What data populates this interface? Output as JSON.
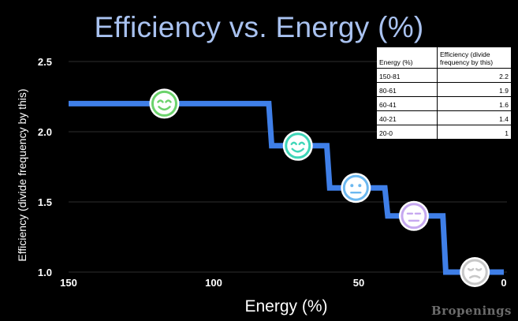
{
  "chart_data": {
    "type": "line",
    "title": "Efficiency vs. Energy (%)",
    "xlabel": "Energy (%)",
    "ylabel": "Efficiency (divide frequency by this)",
    "xlim": [
      150,
      0
    ],
    "ylim": [
      1.0,
      2.5
    ],
    "x_ticks": [
      150,
      100,
      50,
      0
    ],
    "y_ticks": [
      1.0,
      1.5,
      2.0,
      2.5
    ],
    "grid": true,
    "x": [
      150,
      81,
      80,
      61,
      60,
      41,
      40,
      21,
      20,
      0
    ],
    "y": [
      2.2,
      2.2,
      1.9,
      1.9,
      1.6,
      1.6,
      1.4,
      1.4,
      1.0,
      1.0
    ],
    "line_color": "#3f7fe8",
    "markers": [
      {
        "x": 117,
        "y": 2.2,
        "icon": "grinning-face-icon",
        "color": "#6cd36c"
      },
      {
        "x": 71,
        "y": 1.9,
        "icon": "smiling-face-icon",
        "color": "#3fd6b8"
      },
      {
        "x": 51,
        "y": 1.6,
        "icon": "neutral-face-icon",
        "color": "#6cb8f0"
      },
      {
        "x": 31,
        "y": 1.4,
        "icon": "unamused-face-icon",
        "color": "#c6a8f0"
      },
      {
        "x": 10,
        "y": 1.0,
        "icon": "relieved-face-icon",
        "color": "#c8c8c8"
      }
    ],
    "table": {
      "headers": [
        "Energy (%)",
        "Efficiency (divide frequency by this)"
      ],
      "rows": [
        [
          "150-81",
          "2.2"
        ],
        [
          "80-61",
          "1.9"
        ],
        [
          "60-41",
          "1.6"
        ],
        [
          "40-21",
          "1.4"
        ],
        [
          "20-0",
          "1"
        ]
      ]
    }
  },
  "watermark": "Bropenings"
}
